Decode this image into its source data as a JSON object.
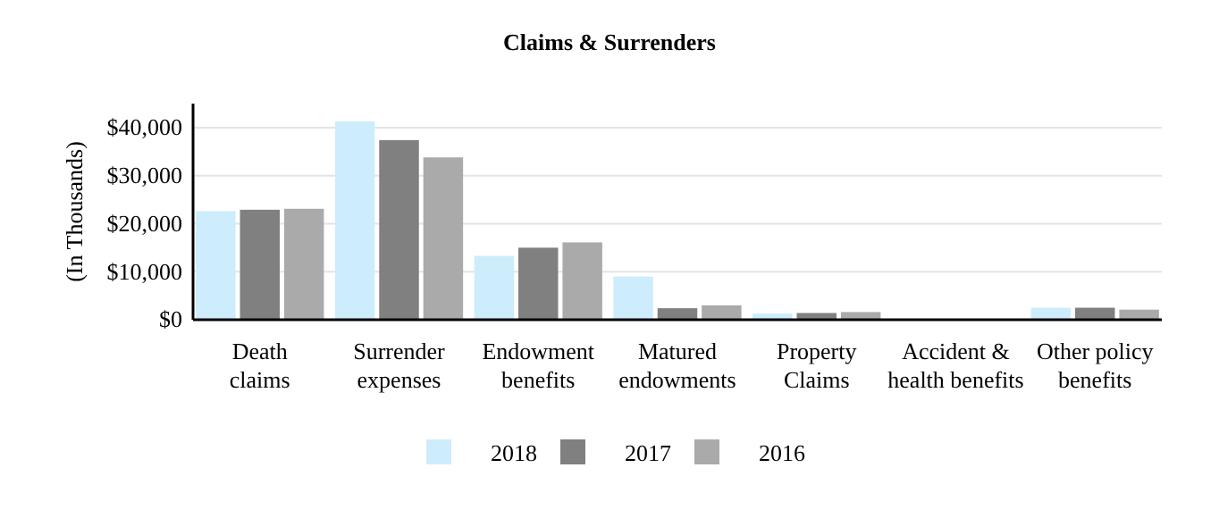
{
  "chart_data": {
    "type": "bar",
    "title": "Claims & Surrenders",
    "ylabel": "(In Thousands)",
    "categories": [
      "Death claims",
      "Surrender expenses",
      "Endowment benefits",
      "Matured endowments",
      "Property Claims",
      "Accident & health benefits",
      "Other policy benefits"
    ],
    "series": [
      {
        "name": "2018",
        "color": "#cdedfc",
        "values": [
          22600,
          41300,
          13300,
          9000,
          1300,
          0,
          2500
        ]
      },
      {
        "name": "2017",
        "color": "#808080",
        "values": [
          22900,
          37400,
          15000,
          2400,
          1400,
          0,
          2500
        ]
      },
      {
        "name": "2016",
        "color": "#aaaaaa",
        "values": [
          23100,
          33800,
          16100,
          3000,
          1600,
          0,
          2100
        ]
      }
    ],
    "ylim": [
      0,
      45000
    ],
    "yticks": [
      {
        "value": 0,
        "label": "$0"
      },
      {
        "value": 10000,
        "label": "$10,000"
      },
      {
        "value": 20000,
        "label": "$20,000"
      },
      {
        "value": 30000,
        "label": "$30,000"
      },
      {
        "value": 40000,
        "label": "$40,000"
      }
    ],
    "grid": "y",
    "legend": "bottom"
  }
}
